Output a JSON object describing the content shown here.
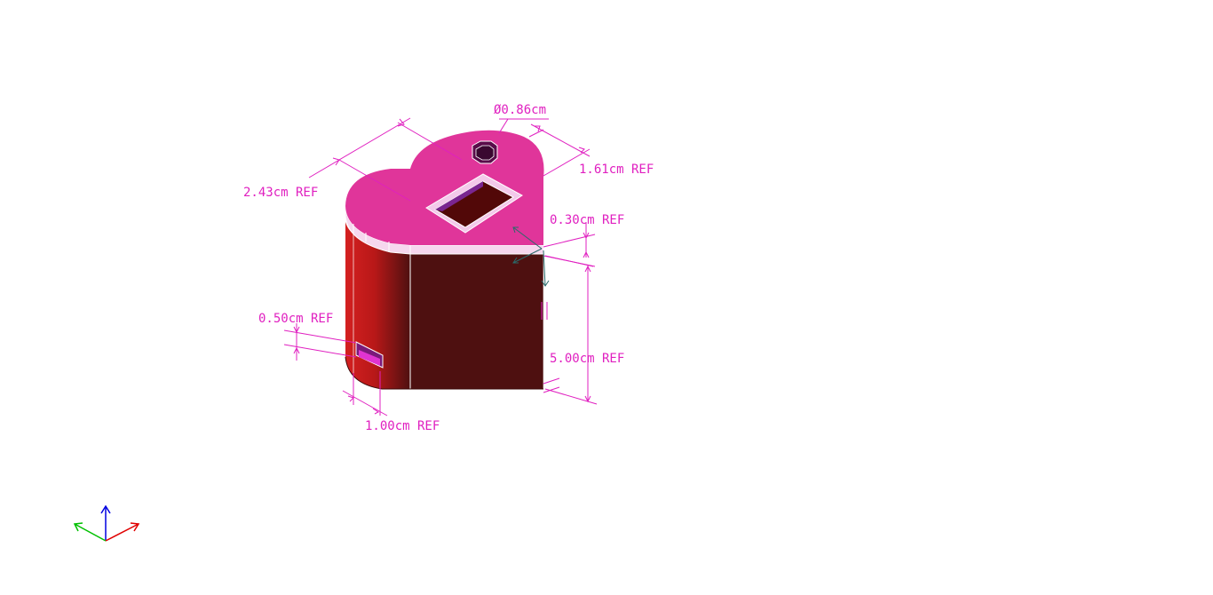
{
  "colors": {
    "background": "#ffffff",
    "dimension": "#e020c0",
    "top_face": "#e0359a",
    "side_face": "#4e1010",
    "side_face_light": "#d42020",
    "rim_band": "#f5e0f0",
    "edge": "#ffffff",
    "pocket": "#520808",
    "triad_x": "#e00000",
    "triad_y": "#00c000",
    "triad_z": "#0000e0",
    "cursor": "#2a6a6a"
  },
  "dimensions": {
    "width": "2.43cm REF",
    "hole_diameter": "Ø0.86cm",
    "depth": "1.61cm REF",
    "lip": "0.30cm REF",
    "slot_height": "0.50cm REF",
    "height": "5.00cm REF",
    "slot_width": "1.00cm REF"
  },
  "triad": {
    "axes": [
      "x-axis",
      "y-axis",
      "z-axis"
    ]
  }
}
